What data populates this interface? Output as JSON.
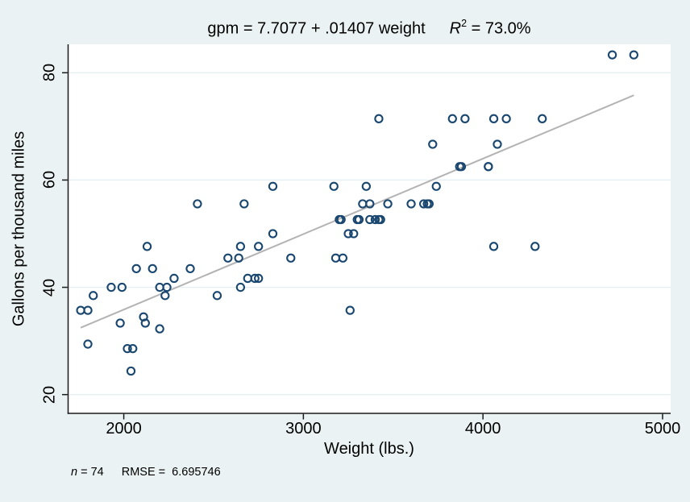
{
  "header": {
    "equation": "gpm = 7.7077 + .01407 weight",
    "r2_base": "R",
    "r2_exp": "2",
    "r2_value": " = 73.0%"
  },
  "footer": {
    "n_var": "n",
    "n_value": " = 74",
    "rmse_text": "RMSE =  6.695746"
  },
  "colors": {
    "background": "#eaf2f3",
    "plot_background": "#ffffff",
    "marker": "#1a476f",
    "fit_line": "#b3b3b3",
    "gridline": "#e6eff1",
    "axis": "#1a1a1a"
  },
  "chart_data": {
    "type": "scatter",
    "title": "gpm = 7.7077 + .01407 weight    R2 = 73.0%",
    "xlabel": "Weight (lbs.)",
    "ylabel": "Gallons per thousand miles",
    "xlim": [
      1690,
      5045
    ],
    "ylim": [
      16.5,
      85.3
    ],
    "xticks": [
      2000,
      3000,
      4000,
      5000
    ],
    "yticks": [
      20,
      40,
      60,
      80
    ],
    "grid": "horizontal-only",
    "legend": "none",
    "n": 74,
    "rmse": 6.695746,
    "r_squared_pct": 73.0,
    "marker": {
      "shape": "hollow-circle",
      "radius_px": 4.6,
      "stroke_px": 2.1
    },
    "fit_line": {
      "intercept": 7.7077,
      "slope": 0.01407,
      "x_start": 1760,
      "x_end": 4840
    },
    "points_xy": [
      [
        1760,
        35.71
      ],
      [
        1800,
        35.71
      ],
      [
        1800,
        29.41
      ],
      [
        1830,
        38.46
      ],
      [
        1930,
        40.0
      ],
      [
        1980,
        33.33
      ],
      [
        1990,
        40.0
      ],
      [
        2020,
        28.57
      ],
      [
        2040,
        24.39
      ],
      [
        2050,
        28.57
      ],
      [
        2070,
        43.48
      ],
      [
        2110,
        34.48
      ],
      [
        2120,
        33.33
      ],
      [
        2130,
        47.62
      ],
      [
        2160,
        43.48
      ],
      [
        2200,
        40.0
      ],
      [
        2200,
        32.26
      ],
      [
        2230,
        38.46
      ],
      [
        2240,
        40.0
      ],
      [
        2280,
        41.67
      ],
      [
        2370,
        43.48
      ],
      [
        2410,
        55.56
      ],
      [
        2520,
        38.46
      ],
      [
        2580,
        45.45
      ],
      [
        2640,
        45.45
      ],
      [
        2650,
        47.62
      ],
      [
        2650,
        40.0
      ],
      [
        2670,
        55.56
      ],
      [
        2690,
        41.67
      ],
      [
        2730,
        41.67
      ],
      [
        2750,
        41.67
      ],
      [
        2750,
        47.62
      ],
      [
        2830,
        50.0
      ],
      [
        2830,
        58.82
      ],
      [
        2930,
        45.45
      ],
      [
        3170,
        58.82
      ],
      [
        3180,
        45.45
      ],
      [
        3200,
        52.63
      ],
      [
        3210,
        52.63
      ],
      [
        3220,
        45.45
      ],
      [
        3250,
        50.0
      ],
      [
        3260,
        35.71
      ],
      [
        3280,
        50.0
      ],
      [
        3300,
        52.63
      ],
      [
        3310,
        52.63
      ],
      [
        3330,
        55.56
      ],
      [
        3350,
        58.82
      ],
      [
        3370,
        55.56
      ],
      [
        3370,
        52.63
      ],
      [
        3400,
        52.63
      ],
      [
        3420,
        52.63
      ],
      [
        3420,
        71.43
      ],
      [
        3430,
        52.63
      ],
      [
        3470,
        55.56
      ],
      [
        3600,
        55.56
      ],
      [
        3670,
        55.56
      ],
      [
        3690,
        55.56
      ],
      [
        3700,
        55.56
      ],
      [
        3720,
        66.67
      ],
      [
        3740,
        58.82
      ],
      [
        3830,
        71.43
      ],
      [
        3870,
        62.5
      ],
      [
        3880,
        62.5
      ],
      [
        3900,
        71.43
      ],
      [
        4030,
        62.5
      ],
      [
        4030,
        62.5
      ],
      [
        4060,
        71.43
      ],
      [
        4060,
        47.62
      ],
      [
        4080,
        66.67
      ],
      [
        4130,
        71.43
      ],
      [
        4290,
        47.62
      ],
      [
        4330,
        71.43
      ],
      [
        4720,
        83.33
      ],
      [
        4840,
        83.33
      ]
    ]
  }
}
